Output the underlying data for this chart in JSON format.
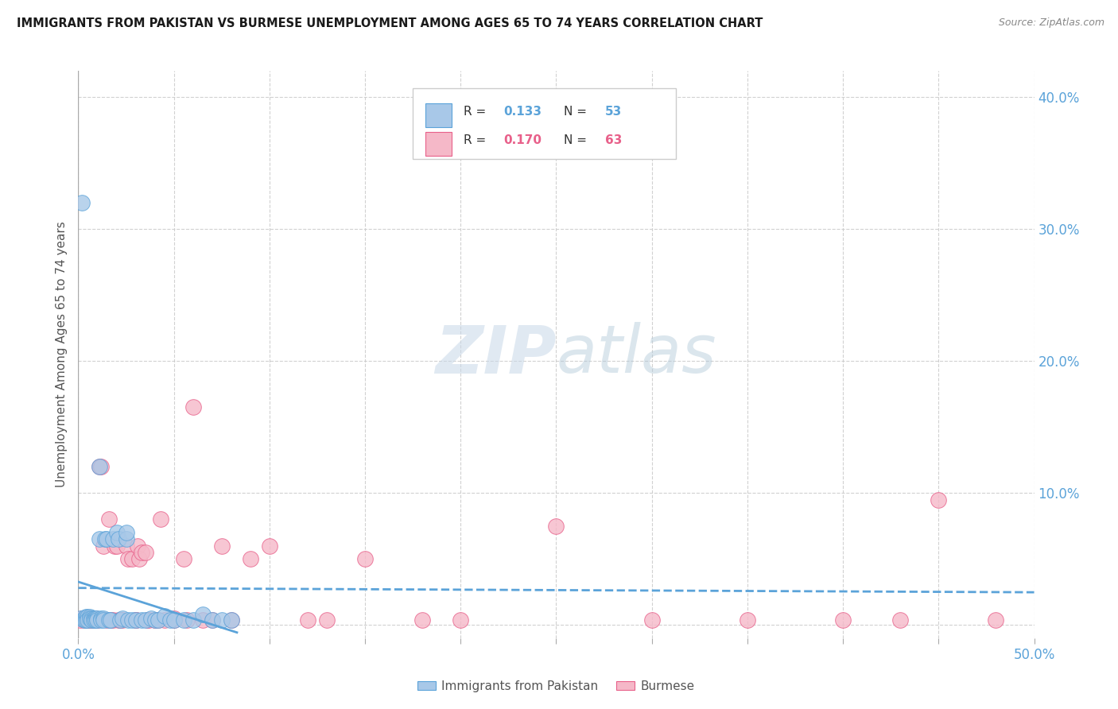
{
  "title": "IMMIGRANTS FROM PAKISTAN VS BURMESE UNEMPLOYMENT AMONG AGES 65 TO 74 YEARS CORRELATION CHART",
  "source": "Source: ZipAtlas.com",
  "ylabel": "Unemployment Among Ages 65 to 74 years",
  "xlim": [
    0.0,
    0.5
  ],
  "ylim": [
    -0.01,
    0.42
  ],
  "series1_label": "Immigrants from Pakistan",
  "series2_label": "Burmese",
  "R1": 0.133,
  "N1": 53,
  "R2": 0.17,
  "N2": 63,
  "color1": "#a8c8e8",
  "color2": "#f5b8c8",
  "trendline1_color": "#5ba3d9",
  "trendline2_color": "#e8608a",
  "watermark_zip": "ZIP",
  "watermark_atlas": "atlas",
  "background_color": "#ffffff",
  "pakistan_x": [
    0.001,
    0.002,
    0.003,
    0.003,
    0.004,
    0.004,
    0.005,
    0.005,
    0.005,
    0.006,
    0.006,
    0.007,
    0.007,
    0.008,
    0.008,
    0.009,
    0.009,
    0.01,
    0.01,
    0.011,
    0.011,
    0.012,
    0.012,
    0.013,
    0.013,
    0.014,
    0.015,
    0.016,
    0.017,
    0.018,
    0.02,
    0.021,
    0.022,
    0.023,
    0.025,
    0.025,
    0.026,
    0.028,
    0.03,
    0.033,
    0.035,
    0.038,
    0.04,
    0.042,
    0.045,
    0.048,
    0.05,
    0.055,
    0.06,
    0.065,
    0.07,
    0.075,
    0.08
  ],
  "pakistan_y": [
    0.005,
    0.32,
    0.005,
    0.004,
    0.006,
    0.004,
    0.005,
    0.006,
    0.004,
    0.006,
    0.005,
    0.005,
    0.004,
    0.005,
    0.004,
    0.005,
    0.004,
    0.005,
    0.004,
    0.12,
    0.065,
    0.005,
    0.004,
    0.005,
    0.004,
    0.065,
    0.065,
    0.004,
    0.004,
    0.065,
    0.07,
    0.065,
    0.004,
    0.005,
    0.065,
    0.07,
    0.004,
    0.004,
    0.004,
    0.004,
    0.004,
    0.005,
    0.004,
    0.004,
    0.007,
    0.004,
    0.004,
    0.004,
    0.004,
    0.008,
    0.004,
    0.004,
    0.004
  ],
  "burmese_x": [
    0.001,
    0.002,
    0.003,
    0.004,
    0.005,
    0.005,
    0.006,
    0.007,
    0.008,
    0.009,
    0.01,
    0.01,
    0.011,
    0.012,
    0.013,
    0.015,
    0.016,
    0.017,
    0.018,
    0.019,
    0.02,
    0.021,
    0.022,
    0.023,
    0.025,
    0.026,
    0.028,
    0.03,
    0.03,
    0.031,
    0.032,
    0.033,
    0.035,
    0.036,
    0.037,
    0.04,
    0.04,
    0.042,
    0.043,
    0.045,
    0.05,
    0.05,
    0.055,
    0.057,
    0.06,
    0.065,
    0.07,
    0.075,
    0.08,
    0.09,
    0.1,
    0.12,
    0.13,
    0.15,
    0.18,
    0.2,
    0.25,
    0.3,
    0.35,
    0.4,
    0.43,
    0.45,
    0.48
  ],
  "burmese_y": [
    0.004,
    0.005,
    0.004,
    0.004,
    0.005,
    0.004,
    0.004,
    0.004,
    0.004,
    0.005,
    0.004,
    0.004,
    0.12,
    0.12,
    0.06,
    0.004,
    0.08,
    0.004,
    0.004,
    0.06,
    0.06,
    0.004,
    0.004,
    0.004,
    0.06,
    0.05,
    0.05,
    0.004,
    0.004,
    0.06,
    0.05,
    0.055,
    0.055,
    0.004,
    0.004,
    0.004,
    0.004,
    0.004,
    0.08,
    0.004,
    0.005,
    0.004,
    0.05,
    0.004,
    0.165,
    0.004,
    0.004,
    0.06,
    0.004,
    0.05,
    0.06,
    0.004,
    0.004,
    0.05,
    0.004,
    0.004,
    0.075,
    0.004,
    0.004,
    0.004,
    0.004,
    0.095,
    0.004
  ]
}
